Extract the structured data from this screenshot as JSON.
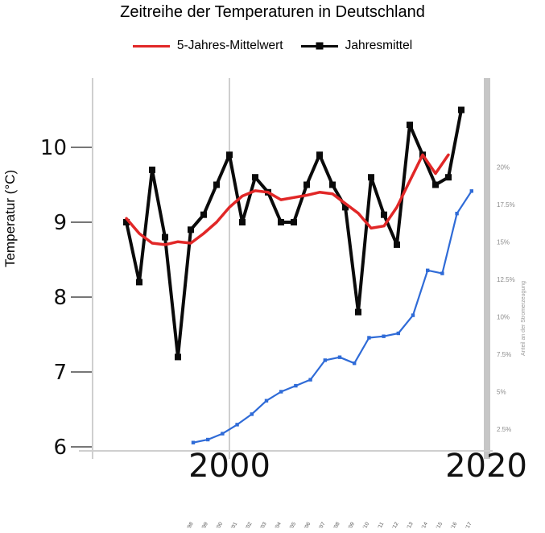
{
  "title": "Zeitreihe der Temperaturen in Deutschland",
  "legend": {
    "series1": "5-Jahres-Mittelwert",
    "series2": "Jahresmittel"
  },
  "y_axis": {
    "label": "Temperatur (°C)",
    "ticks": [
      "10",
      "9",
      "8",
      "7",
      "6"
    ]
  },
  "x_axis": {
    "ticks": [
      "2000",
      "2020"
    ]
  },
  "right_axis": {
    "label": "Anteil an der Stromerzeugung",
    "ticks": [
      "20%",
      "17.5%",
      "15%",
      "12.5%",
      "10%",
      "7.5%",
      "5%",
      "2.5%"
    ]
  },
  "bottom_mini_labels": [
    "'98",
    "'99",
    "'00",
    "'01",
    "'02",
    "'03",
    "'04",
    "'05",
    "'06",
    "'07",
    "'08",
    "'09",
    "'10",
    "'11",
    "'12",
    "'13",
    "'14",
    "'15",
    "'16",
    "'17"
  ],
  "colors": {
    "five_year_mean": "#e12727",
    "annual_mean": "#0a0a0a",
    "share_line": "#2f6bd7",
    "grid": "#cfcfcf",
    "grid_thick": "#c6c6c6",
    "tick_text": "#111111",
    "right_tick_text": "#8c8c8c"
  },
  "chart_data": {
    "type": "line",
    "title": "Zeitreihe der Temperaturen in Deutschland",
    "ylabel": "Temperatur (°C)",
    "ylim": [
      6,
      10.7
    ],
    "y_ticks": [
      10,
      9,
      8,
      7,
      6
    ],
    "x_ticks": [
      2000,
      2020
    ],
    "grid": "vertical-only",
    "legend_position": "top",
    "right_ylabel": "Anteil an der Stromerzeugung",
    "right_ticks": [
      20,
      17.5,
      15,
      12.5,
      10,
      7.5,
      5,
      2.5
    ],
    "series": [
      {
        "name": "Jahresmittel",
        "axis": "left",
        "marker": "square",
        "color": "#0a0a0a",
        "years": [
          1992,
          1993,
          1994,
          1995,
          1996,
          1997,
          1998,
          1999,
          2000,
          2001,
          2002,
          2003,
          2004,
          2005,
          2006,
          2007,
          2008,
          2009,
          2010,
          2011,
          2012,
          2013,
          2014,
          2015,
          2016,
          2017,
          2018
        ],
        "values": [
          9.0,
          8.2,
          9.7,
          8.8,
          7.2,
          8.9,
          9.1,
          9.5,
          9.9,
          9.0,
          9.6,
          9.4,
          9.0,
          9.0,
          9.5,
          9.9,
          9.5,
          9.2,
          7.8,
          9.6,
          9.1,
          8.7,
          10.3,
          9.9,
          9.5,
          9.6,
          10.5
        ]
      },
      {
        "name": "5-Jahres-Mittelwert",
        "axis": "left",
        "marker": "none",
        "color": "#e12727",
        "years": [
          1992,
          1993,
          1994,
          1995,
          1996,
          1997,
          1998,
          1999,
          2000,
          2001,
          2002,
          2003,
          2004,
          2005,
          2006,
          2007,
          2008,
          2009,
          2010,
          2011,
          2012,
          2013,
          2014,
          2015,
          2016,
          2017
        ],
        "values": [
          9.05,
          8.85,
          8.72,
          8.7,
          8.74,
          8.72,
          8.85,
          9.0,
          9.2,
          9.35,
          9.42,
          9.4,
          9.3,
          9.33,
          9.36,
          9.4,
          9.38,
          9.25,
          9.12,
          8.92,
          8.95,
          9.2,
          9.55,
          9.9,
          9.65,
          9.9
        ]
      },
      {
        "name": "Anteil an der Stromerzeugung",
        "axis": "right",
        "unit": "%",
        "marker": "square-small",
        "color": "#2f6bd7",
        "years": [
          1998,
          1999,
          2000,
          2001,
          2002,
          2003,
          2004,
          2005,
          2006,
          2007,
          2008,
          2009,
          2010,
          2011,
          2012,
          2013,
          2014,
          2015,
          2016,
          2017
        ],
        "values": [
          1.6,
          1.8,
          2.2,
          2.8,
          3.5,
          4.4,
          5.0,
          5.4,
          5.8,
          7.1,
          7.3,
          6.9,
          8.6,
          8.7,
          8.9,
          10.1,
          13.1,
          12.9,
          16.9,
          18.4
        ]
      }
    ]
  }
}
